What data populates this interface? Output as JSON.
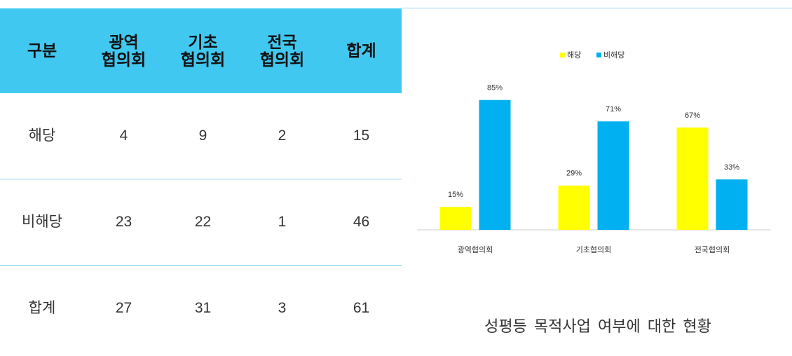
{
  "table": {
    "header": [
      "구분",
      "광역\n협의회",
      "기초\n협의회",
      "전국\n협의회",
      "합계"
    ],
    "rows": [
      [
        "해당",
        "4",
        "9",
        "2",
        "15"
      ],
      [
        "비해당",
        "23",
        "22",
        "1",
        "46"
      ],
      [
        "합계",
        "27",
        "31",
        "3",
        "61"
      ]
    ]
  },
  "chart_data": {
    "type": "bar",
    "categories": [
      "광역협의회",
      "기초협의회",
      "전국협의회"
    ],
    "series": [
      {
        "name": "해당",
        "color": "#ffff00",
        "values": [
          15,
          29,
          67
        ],
        "value_labels": [
          "15%",
          "29%",
          "67%"
        ]
      },
      {
        "name": "비해당",
        "color": "#00b0f0",
        "values": [
          85,
          71,
          33
        ],
        "value_labels": [
          "85%",
          "71%",
          "33%"
        ]
      }
    ]
  },
  "caption": "성평등 목적사업 여부에 대한 현황"
}
